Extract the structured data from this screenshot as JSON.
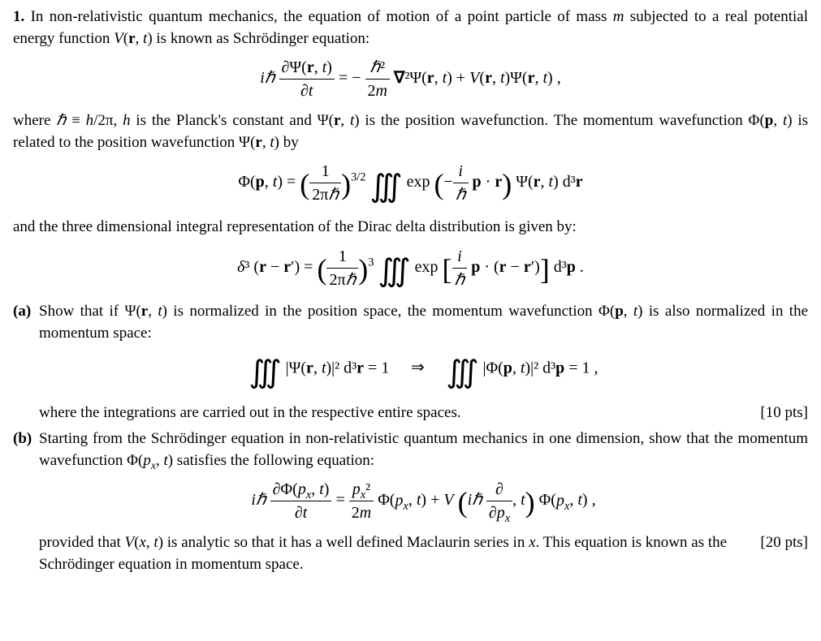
{
  "problem_number": "1.",
  "intro_text_1": "In non-relativistic quantum mechanics, the equation of motion of a point particle of mass ",
  "intro_text_2": " subjected to a real potential energy function ",
  "intro_text_3": " is known as Schrödinger equation:",
  "mass_sym": "m",
  "V_sym": "V",
  "r_sym": "r",
  "t_sym": "t",
  "p_sym": "p",
  "Psi_sym": "Ψ",
  "Phi_sym": "Φ",
  "hbar_sym": "ℏ",
  "i_sym": "i",
  "h_sym": "h",
  "nabla_sym": "∇",
  "partial_sym": "∂",
  "eq1": {
    "lhs_pre": "iℏ",
    "frac_num": "∂Ψ(r, t)",
    "frac_den": "∂t",
    "rhs_pre": " = −",
    "frac2_num": "ℏ²",
    "frac2_den": "2m",
    "rhs_mid": " ∇²Ψ(r, t) + V(r, t)Ψ(r, t) ,"
  },
  "para2_a": "where ℏ ≡ h/2π, h is the Planck's constant and Ψ(",
  "para2_b": ", t) is the position wavefunction. The momentum wavefunction Φ(",
  "para2_c": ", t) is related to the position wavefunction Ψ(",
  "para2_d": ", t) by",
  "eq2": {
    "lhs": "Φ(p, t) = ",
    "coeff_num": "1",
    "coeff_den": "2πℏ",
    "exponent": "3/2",
    "int": "∭",
    "exp_label": "exp",
    "exp_inner_pre": "−",
    "exp_frac_num": "i",
    "exp_frac_den": "ℏ",
    "exp_inner_post": " p · r",
    "post": " Ψ(r, t) d³r"
  },
  "para3": "and the three dimensional integral representation of the Dirac delta distribution is given by:",
  "eq3": {
    "lhs": "δ³ (r − r′) = ",
    "coeff_num": "1",
    "coeff_den": "2πℏ",
    "exponent": "3",
    "int": "∭",
    "exp_label": "exp",
    "exp_frac_num": "i",
    "exp_frac_den": "ℏ",
    "exp_inner_post": " p · (r − r′)",
    "post": " d³p ."
  },
  "part_a": {
    "label": "(a)",
    "text_1": "Show that if Ψ(",
    "text_2": ", t) is normalized in the position space, the momentum wavefunction Φ(",
    "text_3": ", t) is also normalized in the momentum space:",
    "eq_lhs": "∭ |Ψ(r, t)|² d³r = 1",
    "arrow": "⇒",
    "eq_rhs": "∭ |Φ(p, t)|² d³p = 1 ,",
    "closing": "where the integrations are carried out in the respective entire spaces.",
    "pts": "[10 pts]"
  },
  "part_b": {
    "label": "(b)",
    "text_1": "Starting from the Schrödinger equation in non-relativistic quantum mechanics in one dimension, show that the momentum wavefunction Φ(p",
    "text_1_sub": "x",
    "text_1_post": ", t) satisfies the following equation:",
    "eq": {
      "lhs_pre": "iℏ",
      "frac_num": "∂Φ(pₓ, t)",
      "frac_den": "∂t",
      "eq_sign": " = ",
      "frac2_num": "pₓ²",
      "frac2_den": "2m",
      "mid": " Φ(pₓ, t) + V ",
      "arg_pre": "iℏ",
      "arg_frac_num": "∂",
      "arg_frac_den": "∂pₓ",
      "arg_post": ", t",
      "post": " Φ(pₓ, t) ,"
    },
    "closing_1": "provided that V(x, t) is analytic so that it has a well defined Maclaurin series in x. This equation is known as the Schrödinger equation in momentum space.",
    "pts": "[20 pts]"
  },
  "colors": {
    "text": "#000000",
    "background": "#ffffff"
  },
  "fontsize_body": 19,
  "fontsize_eq": 20
}
